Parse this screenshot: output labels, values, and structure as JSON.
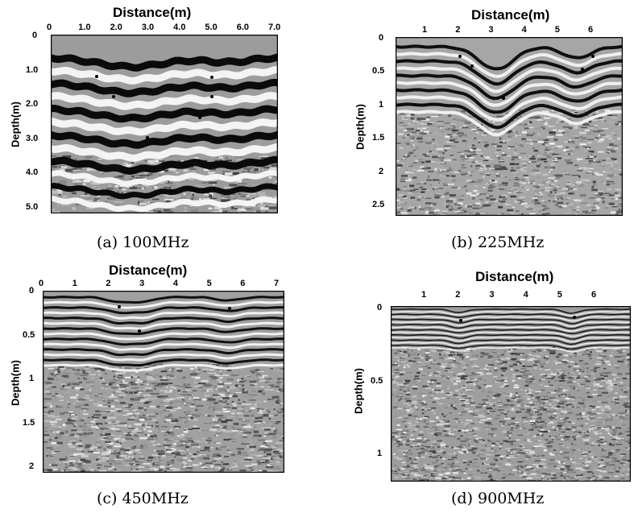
{
  "panels": [
    {
      "id": "a",
      "title": "Distance(m)",
      "ylabel": "Depth(m)",
      "caption": "(a)  100MHz",
      "xticks": [
        "0",
        "1.0",
        "2.0",
        "3.0",
        "4.0",
        "5.0",
        "6.0",
        "7.0"
      ],
      "yticks": [
        "0",
        "1.0",
        "2.0",
        "3.0",
        "4.0",
        "5.0"
      ]
    },
    {
      "id": "b",
      "title": "Distance(m)",
      "ylabel": "Depth(m)",
      "caption": "(b)  225MHz",
      "xticks": [
        "1",
        "2",
        "3",
        "4",
        "5",
        "6"
      ],
      "yticks": [
        "0",
        "0.5",
        "1",
        "1.5",
        "2",
        "2.5"
      ]
    },
    {
      "id": "c",
      "title": "Distance(m)",
      "ylabel": "Depth(m)",
      "caption": "(c)  450MHz",
      "xticks": [
        "0",
        "1",
        "2",
        "3",
        "4",
        "5",
        "6",
        "7"
      ],
      "yticks": [
        "0",
        "0.5",
        "1",
        "1.5",
        "2"
      ]
    },
    {
      "id": "d",
      "title": "Distance(m)",
      "ylabel": "Depth(m)",
      "caption": "(d)  900MHz",
      "xticks": [
        "1",
        "2",
        "3",
        "4",
        "5",
        "6"
      ],
      "yticks": [
        "0",
        "0.5",
        "1"
      ]
    }
  ],
  "colors": {
    "band_dark": "#0d0d0d",
    "band_light": "#f2f2f2",
    "noise_base": "#9a9a9a"
  }
}
